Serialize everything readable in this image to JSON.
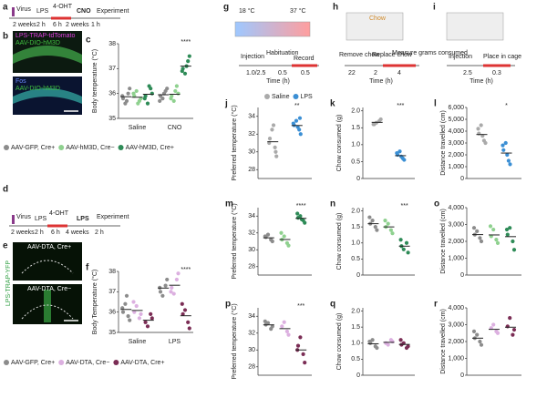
{
  "panels": {
    "a": "a",
    "b": "b",
    "d": "d",
    "e": "e",
    "g": "g",
    "h": "h",
    "i": "i"
  },
  "diagrams": {
    "a": {
      "labels": [
        "Virus",
        "LPS",
        "4-OHT",
        "CNO",
        "Experiment"
      ],
      "times": [
        "2 weeks",
        "2 h",
        "6 h",
        "2 weeks",
        "1 h"
      ]
    },
    "b": {
      "labels": [
        "LPS-TRAP-tdTomato",
        "AAV-DIO-hM3D",
        "Fos",
        "AAV-DIO-hM3D"
      ]
    },
    "d": {
      "labels": [
        "Virus",
        "LPS",
        "4-OHT",
        "LPS",
        "Experiment"
      ],
      "times": [
        "2 weeks",
        "2 h",
        "6 h",
        "4 weeks",
        "2 h"
      ]
    },
    "e": {
      "labels": [
        "AAV-DTA, Cre+",
        "AAV-DTA, Cre−",
        "LPS-TRAP-YFP"
      ]
    },
    "g": {
      "labels": [
        "18 °C",
        "37 °C",
        "Injection",
        "Habituation",
        "Record"
      ],
      "times": [
        "1.0/2.5",
        "0.5",
        "0.5"
      ],
      "axis": "Time (h)"
    },
    "h": {
      "labels": [
        "Chow",
        "Remove chow",
        "Replace chow",
        "Measure grams consumed"
      ],
      "times": [
        "22",
        "2",
        "4"
      ],
      "axis": "Time (h)"
    },
    "i": {
      "labels": [
        "Injection",
        "Place in cage"
      ],
      "times": [
        "2.5",
        "0.3"
      ],
      "axis": "Time (h)"
    }
  },
  "chart_data": [
    {
      "type": "dot",
      "panel": "c",
      "ylabel": "Body temperature (°C)",
      "categories": [
        "Saline",
        "CNO"
      ],
      "ylim": [
        35,
        38
      ],
      "yticks": [
        35,
        36,
        37,
        38
      ],
      "series": [
        {
          "name": "AAV-GFP, Cre+",
          "color": "#8c8c8c",
          "values": [
            [
              35.8,
              36.0,
              35.6,
              36.2,
              35.9,
              35.7
            ],
            [
              35.9,
              36.1,
              35.8,
              36.2,
              35.7,
              36.0
            ]
          ],
          "means": [
            35.87,
            35.95
          ]
        },
        {
          "name": "AAV-hM3D, Cre−",
          "color": "#8fd18f",
          "values": [
            [
              35.9,
              35.7,
              36.1,
              35.8,
              36.0,
              35.6
            ],
            [
              35.9,
              36.3,
              35.7,
              36.0,
              35.8,
              36.1
            ]
          ],
          "means": [
            35.85,
            35.97
          ]
        },
        {
          "name": "AAV-hM3D, Cre+",
          "color": "#2e8b57",
          "values": [
            [
              35.9,
              36.2,
              35.6,
              36.0,
              35.8,
              36.3
            ],
            [
              37.0,
              37.3,
              36.8,
              37.5,
              36.9,
              37.1
            ]
          ],
          "means": [
            35.97,
            37.1
          ]
        }
      ],
      "annotations": [
        {
          "text": "****",
          "category": 1,
          "series": 2
        }
      ]
    },
    {
      "type": "dot",
      "panel": "f",
      "ylabel": "Body Temperature (°C)",
      "categories": [
        "Saline",
        "LPS"
      ],
      "ylim": [
        35,
        38
      ],
      "yticks": [
        35,
        36,
        37,
        38
      ],
      "series": [
        {
          "name": "AAV-GFP, Cre+",
          "color": "#8c8c8c",
          "values": [
            [
              36.0,
              35.8,
              36.4,
              35.6,
              36.2,
              36.8
            ],
            [
              37.0,
              37.3,
              36.8,
              37.6,
              37.2
            ]
          ],
          "means": [
            36.13,
            37.18
          ]
        },
        {
          "name": "AAV-DTA, Cre−",
          "color": "#dcb0e0",
          "values": [
            [
              36.0,
              35.7,
              36.3,
              35.9,
              36.5
            ],
            [
              37.2,
              37.6,
              36.9,
              37.9,
              37.0
            ]
          ],
          "means": [
            36.08,
            37.32
          ]
        },
        {
          "name": "AAV-DTA, Cre+",
          "color": "#7b2d55",
          "values": [
            [
              35.5,
              35.9,
              35.3,
              35.7
            ],
            [
              35.9,
              35.5,
              36.1,
              35.2,
              36.4
            ]
          ],
          "means": [
            35.6,
            35.82
          ]
        }
      ],
      "annotations": [
        {
          "text": "****",
          "category": 1,
          "series": 2
        }
      ]
    },
    {
      "type": "dot",
      "panel": "j",
      "ylabel": "Preferred temperature (°C)",
      "categories": [
        null
      ],
      "ylim": [
        27,
        35
      ],
      "yticks": [
        28,
        30,
        32,
        34
      ],
      "series": [
        {
          "name": "Saline",
          "color": "#aaaaaa",
          "values": [
            [
              31.5,
              30.5,
              32.5,
              29.5,
              31.0,
              33.0,
              30.0
            ]
          ],
          "means": [
            31.14
          ]
        },
        {
          "name": "LPS",
          "color": "#3b8fd4",
          "values": [
            [
              33.0,
              32.5,
              33.5,
              32.0,
              33.2,
              32.8,
              33.8
            ]
          ],
          "means": [
            32.97
          ]
        }
      ],
      "annotations": [
        {
          "text": "**",
          "category": 0,
          "series": 1
        }
      ]
    },
    {
      "type": "dot",
      "panel": "k",
      "ylabel": "Chow consumed (g)",
      "categories": [
        null
      ],
      "ylim": [
        0,
        2.1
      ],
      "yticks": [
        0,
        0.5,
        {
          "value": 1,
          "label": "1.0"
        },
        1.5,
        {
          "value": 2,
          "label": "2.0"
        }
      ],
      "series": [
        {
          "color": "#aaaaaa",
          "values": [
            [
              1.6,
              1.7,
              1.65,
              1.75,
              1.6
            ]
          ],
          "means": [
            1.66
          ]
        },
        {
          "color": "#3b8fd4",
          "values": [
            [
              0.7,
              0.6,
              0.8,
              0.55,
              0.75,
              0.65
            ]
          ],
          "means": [
            0.675
          ]
        }
      ],
      "annotations": [
        {
          "text": "***",
          "category": 0,
          "series": 1
        }
      ]
    },
    {
      "type": "dot",
      "panel": "l",
      "ylabel": "Distance travelled (cm)",
      "categories": [
        null
      ],
      "ylim": [
        0,
        6000
      ],
      "yticks": [
        0,
        {
          "value": 1000,
          "label": "1,000"
        },
        {
          "value": 2000,
          "label": "2,000"
        },
        {
          "value": 3000,
          "label": "3,000"
        },
        {
          "value": 4000,
          "label": "4,000"
        },
        {
          "value": 5000,
          "label": "5,000"
        },
        {
          "value": 6000,
          "label": "6,000"
        }
      ],
      "series": [
        {
          "color": "#aaaaaa",
          "values": [
            [
              3800,
              3200,
              4500,
              3000,
              4200,
              3600
            ]
          ],
          "means": [
            3717
          ]
        },
        {
          "color": "#3b8fd4",
          "values": [
            [
              2400,
              1500,
              3000,
              1200,
              2800,
              2000
            ]
          ],
          "means": [
            2150
          ]
        }
      ],
      "annotations": [
        {
          "text": "*",
          "category": 0,
          "series": 1
        }
      ]
    },
    {
      "type": "dot",
      "panel": "m",
      "ylabel": "Preferred temperature (°C)",
      "categories": [
        null
      ],
      "ylim": [
        27,
        35
      ],
      "yticks": [
        28,
        30,
        32,
        34
      ],
      "series": [
        {
          "color": "#8c8c8c",
          "values": [
            [
              31.5,
              31.2,
              31.8,
              31.0,
              31.6
            ]
          ],
          "means": [
            31.42
          ]
        },
        {
          "color": "#8fd18f",
          "values": [
            [
              31.2,
              30.8,
              31.6,
              30.5,
              32.0
            ]
          ],
          "means": [
            31.22
          ]
        },
        {
          "color": "#2e8b57",
          "values": [
            [
              33.8,
              33.5,
              34.0,
              33.2,
              34.3,
              33.6
            ]
          ],
          "means": [
            33.73
          ]
        }
      ],
      "annotations": [
        {
          "text": "****",
          "category": 0,
          "series": 2
        }
      ]
    },
    {
      "type": "dot",
      "panel": "n",
      "ylabel": "Chow consumed (g)",
      "categories": [
        null
      ],
      "ylim": [
        0,
        2.1
      ],
      "yticks": [
        0,
        0.5,
        {
          "value": 1,
          "label": "1.0"
        },
        1.5,
        {
          "value": 2,
          "label": "2.0"
        }
      ],
      "series": [
        {
          "color": "#8c8c8c",
          "values": [
            [
              1.6,
              1.5,
              1.7,
              1.4,
              1.8
            ]
          ],
          "means": [
            1.6
          ]
        },
        {
          "color": "#8fd18f",
          "values": [
            [
              1.5,
              1.4,
              1.6,
              1.3,
              1.7
            ]
          ],
          "means": [
            1.5
          ]
        },
        {
          "color": "#2e8b57",
          "values": [
            [
              0.9,
              1.0,
              0.8,
              0.7,
              1.1
            ]
          ],
          "means": [
            0.9
          ]
        }
      ],
      "annotations": [
        {
          "text": "***",
          "category": 0,
          "series": 2
        }
      ]
    },
    {
      "type": "dot",
      "panel": "o",
      "ylabel": "Distance travelled (cm)",
      "categories": [
        null
      ],
      "ylim": [
        0,
        4000
      ],
      "yticks": [
        0,
        {
          "value": 1000,
          "label": "1,000"
        },
        {
          "value": 2000,
          "label": "2,000"
        },
        {
          "value": 3000,
          "label": "3,000"
        },
        {
          "value": 4000,
          "label": "4,000"
        }
      ],
      "series": [
        {
          "color": "#8c8c8c",
          "values": [
            [
              2400,
              2200,
              2600,
              2000,
              2800
            ]
          ],
          "means": [
            2400
          ]
        },
        {
          "color": "#8fd18f",
          "values": [
            [
              2300,
              2100,
              2700,
              1900,
              2900
            ]
          ],
          "means": [
            2380
          ]
        },
        {
          "color": "#2e8b57",
          "values": [
            [
              2400,
              2000,
              2800,
              1500,
              2700
            ]
          ],
          "means": [
            2280
          ]
        }
      ]
    },
    {
      "type": "dot",
      "panel": "p",
      "ylabel": "Preferred temperature (°C)",
      "categories": [
        null
      ],
      "ylim": [
        27,
        35
      ],
      "yticks": [
        28,
        30,
        32,
        34
      ],
      "series": [
        {
          "color": "#8c8c8c",
          "values": [
            [
              33,
              32.5,
              33.2,
              32.8,
              33.4
            ]
          ],
          "means": [
            32.98
          ]
        },
        {
          "color": "#dcb0e0",
          "values": [
            [
              32.8,
              32.2,
              33.3,
              31.8
            ]
          ],
          "means": [
            32.53
          ]
        },
        {
          "color": "#7b2d55",
          "values": [
            [
              30.5,
              29.5,
              31.5,
              28.5,
              30.0
            ]
          ],
          "means": [
            30.0
          ]
        }
      ],
      "annotations": [
        {
          "text": "***",
          "category": 0,
          "series": 2
        }
      ]
    },
    {
      "type": "dot",
      "panel": "q",
      "ylabel": "Chow consumed (g)",
      "categories": [
        null
      ],
      "ylim": [
        0,
        2.1
      ],
      "yticks": [
        0,
        0.5,
        {
          "value": 1,
          "label": "1.0"
        },
        1.5,
        {
          "value": 2,
          "label": "2.0"
        }
      ],
      "series": [
        {
          "color": "#8c8c8c",
          "values": [
            [
              1.0,
              0.9,
              1.1,
              0.85,
              1.05
            ]
          ],
          "means": [
            0.98
          ]
        },
        {
          "color": "#dcb0e0",
          "values": [
            [
              1.0,
              1.1,
              0.95,
              1.05
            ]
          ],
          "means": [
            1.025
          ]
        },
        {
          "color": "#7b2d55",
          "values": [
            [
              0.95,
              0.85,
              1.0,
              0.9,
              1.1
            ]
          ],
          "means": [
            0.96
          ]
        }
      ]
    },
    {
      "type": "dot",
      "panel": "r",
      "ylabel": "Distance travelled (cm)",
      "categories": [
        null
      ],
      "ylim": [
        0,
        4000
      ],
      "yticks": [
        0,
        {
          "value": 1000,
          "label": "1,000"
        },
        {
          "value": 2000,
          "label": "2,000"
        },
        {
          "value": 3000,
          "label": "3,000"
        },
        {
          "value": 4000,
          "label": "4,000"
        }
      ],
      "series": [
        {
          "color": "#8c8c8c",
          "values": [
            [
              2200,
              2000,
              2400,
              1800,
              2600
            ]
          ],
          "means": [
            2200
          ]
        },
        {
          "color": "#dcb0e0",
          "values": [
            [
              2800,
              2600,
              3000,
              2500
            ]
          ],
          "means": [
            2725
          ]
        },
        {
          "color": "#7b2d55",
          "values": [
            [
              2900,
              2400,
              3400,
              2700
            ]
          ],
          "means": [
            2850
          ]
        }
      ]
    }
  ]
}
